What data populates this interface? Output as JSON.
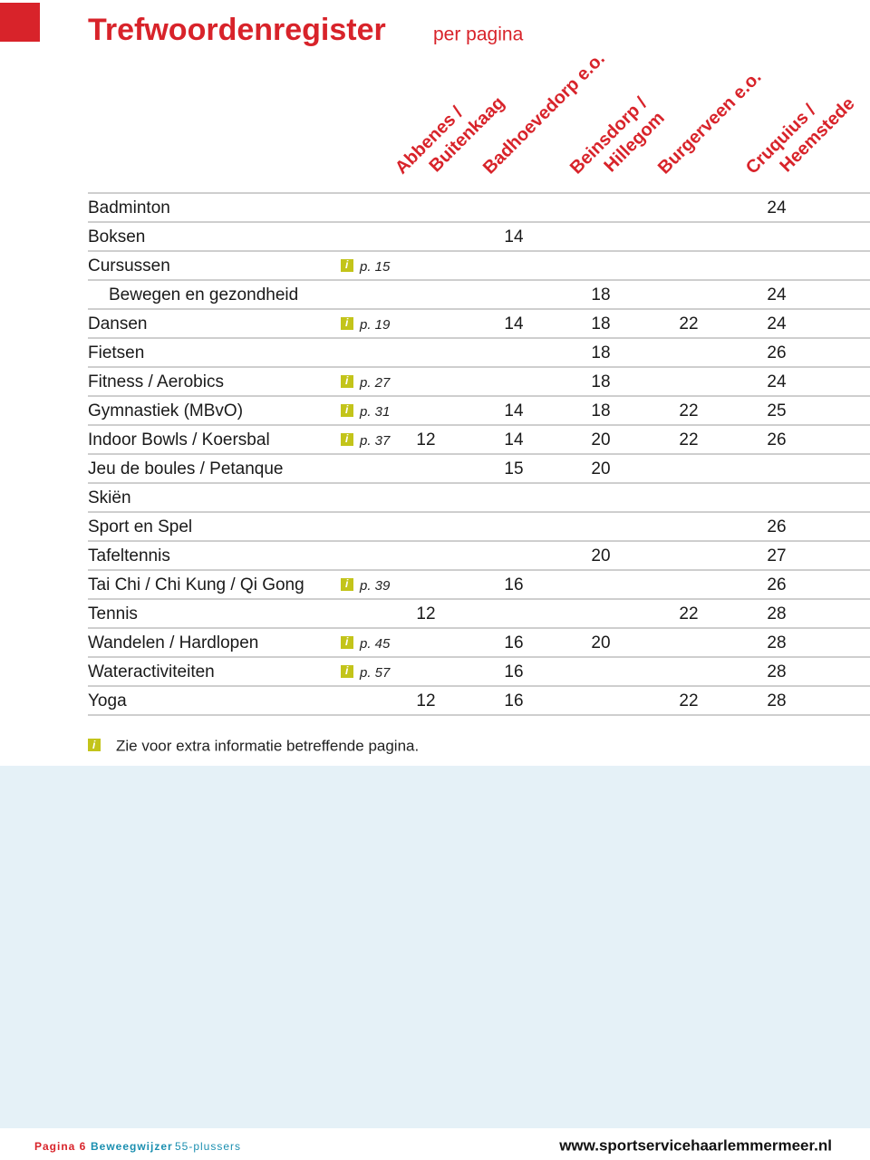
{
  "header": {
    "title": "Trefwoordenregister",
    "subtitle": "per pagina"
  },
  "info_icon": "i",
  "table": {
    "columns": [
      [
        "Abbenes /",
        "Buitenkaag"
      ],
      [
        "Badhoevedorp e.o."
      ],
      [
        "Beinsdorp /",
        "Hillegom"
      ],
      [
        "Burgerveen e.o."
      ],
      [
        "Cruquius /",
        "Heemstede"
      ]
    ],
    "rows": [
      {
        "name": "Badminton",
        "info": null,
        "values": [
          null,
          null,
          null,
          null,
          24
        ]
      },
      {
        "name": "Boksen",
        "info": null,
        "values": [
          null,
          14,
          null,
          null,
          null
        ]
      },
      {
        "name": "Cursussen",
        "info": "p. 15",
        "values": [
          null,
          null,
          null,
          null,
          null
        ]
      },
      {
        "name": "Bewegen en gezondheid",
        "indent": true,
        "info": null,
        "values": [
          null,
          null,
          18,
          null,
          24
        ]
      },
      {
        "name": "Dansen",
        "info": "p. 19",
        "values": [
          null,
          14,
          18,
          22,
          24
        ]
      },
      {
        "name": "Fietsen",
        "info": null,
        "values": [
          null,
          null,
          18,
          null,
          26
        ]
      },
      {
        "name": "Fitness / Aerobics",
        "info": "p. 27",
        "values": [
          null,
          null,
          18,
          null,
          24
        ]
      },
      {
        "name": "Gymnastiek (MBvO)",
        "info": "p. 31",
        "values": [
          null,
          14,
          18,
          22,
          25
        ]
      },
      {
        "name": "Indoor Bowls / Koersbal",
        "info": "p. 37",
        "values": [
          12,
          14,
          20,
          22,
          26
        ]
      },
      {
        "name": "Jeu de boules / Petanque",
        "info": null,
        "values": [
          null,
          15,
          20,
          null,
          null
        ]
      },
      {
        "name": "Skiën",
        "info": null,
        "values": [
          null,
          null,
          null,
          null,
          null
        ]
      },
      {
        "name": "Sport en Spel",
        "info": null,
        "values": [
          null,
          null,
          null,
          null,
          26
        ]
      },
      {
        "name": "Tafeltennis",
        "info": null,
        "values": [
          null,
          null,
          20,
          null,
          27
        ]
      },
      {
        "name": "Tai Chi / Chi Kung / Qi Gong",
        "info": "p. 39",
        "values": [
          null,
          16,
          null,
          null,
          26
        ]
      },
      {
        "name": "Tennis",
        "info": null,
        "values": [
          12,
          null,
          null,
          22,
          28
        ]
      },
      {
        "name": "Wandelen / Hardlopen",
        "info": "p. 45",
        "values": [
          null,
          16,
          20,
          null,
          28
        ]
      },
      {
        "name": "Wateractiviteiten",
        "info": "p. 57",
        "values": [
          null,
          16,
          null,
          null,
          28
        ]
      },
      {
        "name": "Yoga",
        "info": null,
        "values": [
          12,
          16,
          null,
          22,
          28
        ]
      }
    ]
  },
  "note": "Zie voor extra informatie betreffende pagina.",
  "footer": {
    "page": "Pagina 6",
    "brand": "Beweegwijzer",
    "audience": "55-plussers",
    "url": "www.sportservicehaarlemmermeer.nl"
  }
}
